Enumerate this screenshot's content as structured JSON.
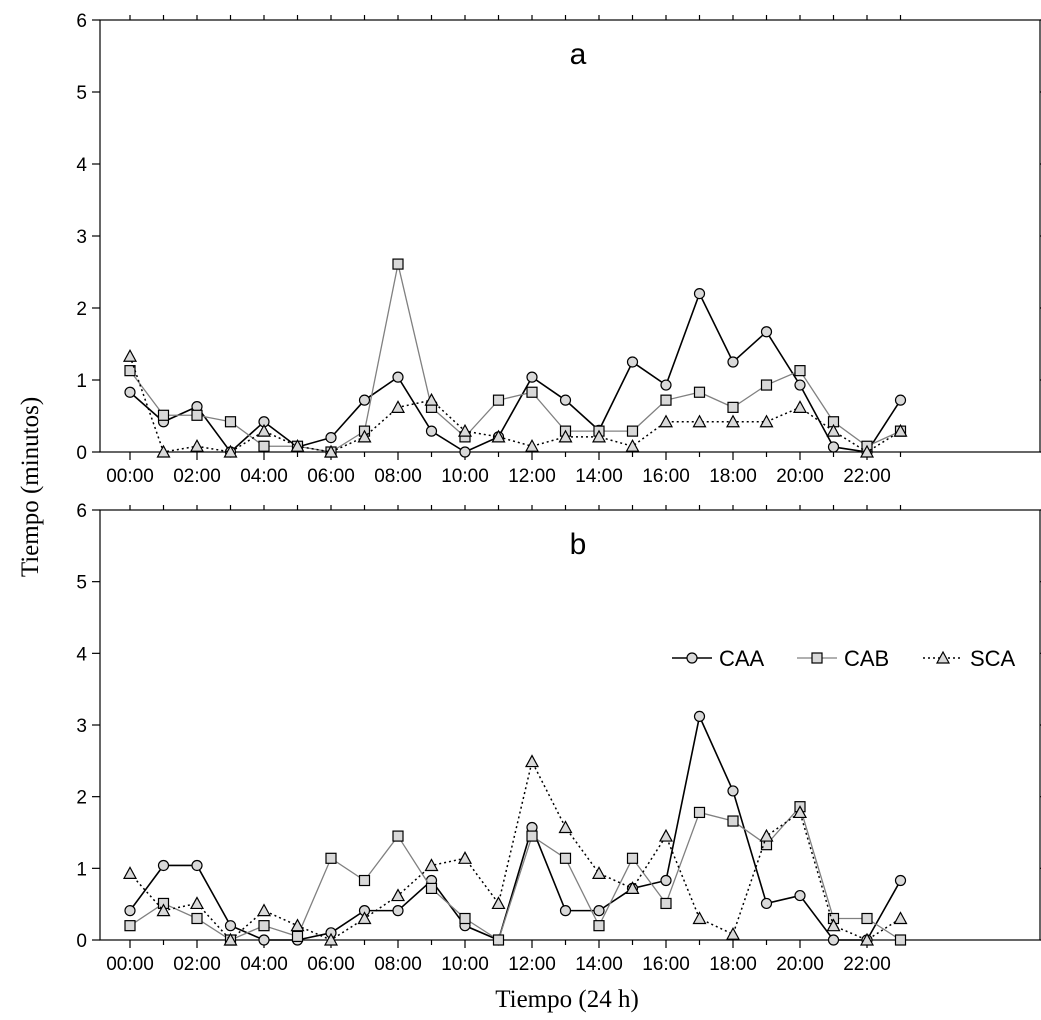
{
  "chart_data": [
    {
      "type": "line",
      "panel_label": "a",
      "x": [
        "00:00",
        "01:00",
        "02:00",
        "03:00",
        "04:00",
        "05:00",
        "06:00",
        "07:00",
        "08:00",
        "09:00",
        "10:00",
        "11:00",
        "12:00",
        "13:00",
        "14:00",
        "15:00",
        "16:00",
        "17:00",
        "18:00",
        "19:00",
        "20:00",
        "21:00",
        "22:00",
        "23:00"
      ],
      "xticks": [
        "00:00",
        "02:00",
        "04:00",
        "06:00",
        "08:00",
        "10:00",
        "12:00",
        "14:00",
        "16:00",
        "18:00",
        "20:00",
        "22:00"
      ],
      "ylim": [
        0,
        6
      ],
      "yticks": [
        0,
        1,
        2,
        3,
        4,
        5,
        6
      ],
      "series": [
        {
          "name": "CAA",
          "marker": "circle",
          "line": "solid-black",
          "values": [
            0.83,
            0.42,
            0.63,
            0,
            0.42,
            0.07,
            0.2,
            0.72,
            1.04,
            0.29,
            0,
            0.21,
            1.04,
            0.72,
            0.3,
            1.25,
            0.93,
            2.2,
            1.25,
            1.67,
            0.93,
            0.07,
            0,
            0.72
          ]
        },
        {
          "name": "CAB",
          "marker": "square",
          "line": "solid-gray",
          "values": [
            1.13,
            0.51,
            0.51,
            0.42,
            0.08,
            0.08,
            0,
            0.29,
            2.61,
            0.62,
            0.21,
            0.72,
            0.83,
            0.29,
            0.29,
            0.29,
            0.72,
            0.83,
            0.62,
            0.93,
            1.13,
            0.42,
            0.08,
            0.29
          ]
        },
        {
          "name": "SCA",
          "marker": "triangle",
          "line": "dotted",
          "values": [
            1.33,
            0,
            0.08,
            0,
            0.29,
            0.08,
            0,
            0.21,
            0.62,
            0.72,
            0.29,
            0.21,
            0.08,
            0.21,
            0.21,
            0.08,
            0.42,
            0.42,
            0.42,
            0.42,
            0.62,
            0.29,
            0,
            0.29
          ]
        }
      ]
    },
    {
      "type": "line",
      "panel_label": "b",
      "x": [
        "00:00",
        "01:00",
        "02:00",
        "03:00",
        "04:00",
        "05:00",
        "06:00",
        "07:00",
        "08:00",
        "09:00",
        "10:00",
        "11:00",
        "12:00",
        "13:00",
        "14:00",
        "15:00",
        "16:00",
        "17:00",
        "18:00",
        "19:00",
        "20:00",
        "21:00",
        "22:00",
        "23:00"
      ],
      "xticks": [
        "00:00",
        "02:00",
        "04:00",
        "06:00",
        "08:00",
        "10:00",
        "12:00",
        "14:00",
        "16:00",
        "18:00",
        "20:00",
        "22:00"
      ],
      "ylim": [
        0,
        6
      ],
      "yticks": [
        0,
        1,
        2,
        3,
        4,
        5,
        6
      ],
      "series": [
        {
          "name": "CAA",
          "marker": "circle",
          "line": "solid-black",
          "values": [
            0.41,
            1.04,
            1.04,
            0.2,
            0,
            0,
            0.1,
            0.41,
            0.41,
            0.83,
            0.2,
            0,
            1.57,
            0.41,
            0.41,
            0.72,
            0.83,
            3.12,
            2.08,
            0.51,
            0.62,
            0,
            0,
            0.83
          ]
        },
        {
          "name": "CAB",
          "marker": "square",
          "line": "solid-gray",
          "values": [
            0.2,
            0.51,
            0.3,
            0,
            0.2,
            0.05,
            1.14,
            0.83,
            1.45,
            0.72,
            0.3,
            0,
            1.45,
            1.14,
            0.2,
            1.14,
            0.51,
            1.78,
            1.66,
            1.33,
            1.86,
            0.3,
            0.3,
            0
          ]
        },
        {
          "name": "SCA",
          "marker": "triangle",
          "line": "dotted",
          "values": [
            0.93,
            0.41,
            0.51,
            0,
            0.41,
            0.2,
            0,
            0.3,
            0.62,
            1.04,
            1.14,
            0.51,
            2.49,
            1.57,
            0.93,
            0.72,
            1.45,
            0.3,
            0.08,
            1.45,
            1.78,
            0.2,
            0,
            0.3
          ]
        }
      ]
    }
  ],
  "axes": {
    "ylabel": "Tiempo (minutos)",
    "xlabel": "Tiempo (24 h)"
  },
  "legend": {
    "placement": "panel-b-right",
    "items": [
      {
        "label": "CAA",
        "marker": "circle"
      },
      {
        "label": "CAB",
        "marker": "square"
      },
      {
        "label": "SCA",
        "marker": "triangle"
      }
    ]
  },
  "colors": {
    "CAA": "#000000",
    "CAB": "#808080",
    "SCA": "#000000",
    "marker_fill": "#d9d9d9"
  }
}
